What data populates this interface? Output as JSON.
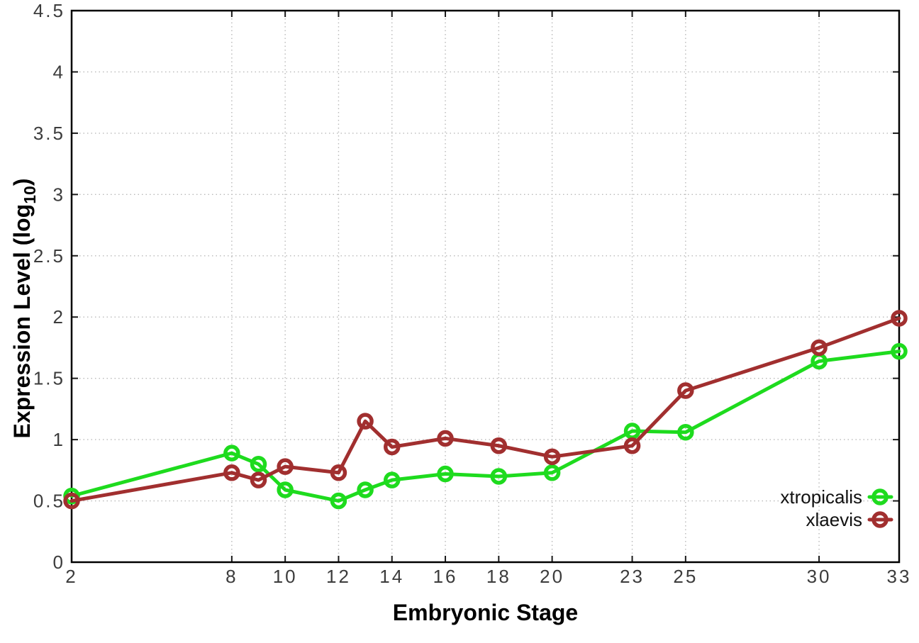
{
  "chart_data": {
    "type": "line",
    "title": "",
    "xlabel": "Embryonic Stage",
    "ylabel": "Expression Level (log10)",
    "ylabel_parts": {
      "main": "Expression Level (log",
      "subscript": "10",
      "suffix": ")"
    },
    "xlim": [
      2,
      33
    ],
    "ylim": [
      0,
      4.5
    ],
    "xticks": [
      2,
      8,
      10,
      12,
      14,
      16,
      18,
      20,
      23,
      25,
      30,
      33
    ],
    "yticks": [
      0,
      0.5,
      1,
      1.5,
      2,
      2.5,
      3,
      3.5,
      4,
      4.5
    ],
    "grid": true,
    "grid_style": "dotted",
    "legend_position": "bottom-right",
    "x": [
      2,
      8,
      9,
      10,
      12,
      13,
      14,
      16,
      18,
      20,
      23,
      25,
      30,
      33
    ],
    "series": [
      {
        "name": "xtropicalis",
        "color": "#1edb1e",
        "marker": "open-circle",
        "values": [
          0.54,
          0.89,
          0.8,
          0.59,
          0.5,
          0.59,
          0.67,
          0.72,
          0.7,
          0.73,
          1.07,
          1.06,
          1.64,
          1.72
        ]
      },
      {
        "name": "xlaevis",
        "color": "#a12f2f",
        "marker": "open-circle",
        "values": [
          0.5,
          0.73,
          0.67,
          0.78,
          0.73,
          1.15,
          0.94,
          1.01,
          0.95,
          0.86,
          0.95,
          1.4,
          1.75,
          1.99
        ]
      }
    ]
  },
  "colors": {
    "background": "#ffffff",
    "grid": "#b9b9b9",
    "border": "#000000",
    "tick_text": "#3c3c3c"
  }
}
